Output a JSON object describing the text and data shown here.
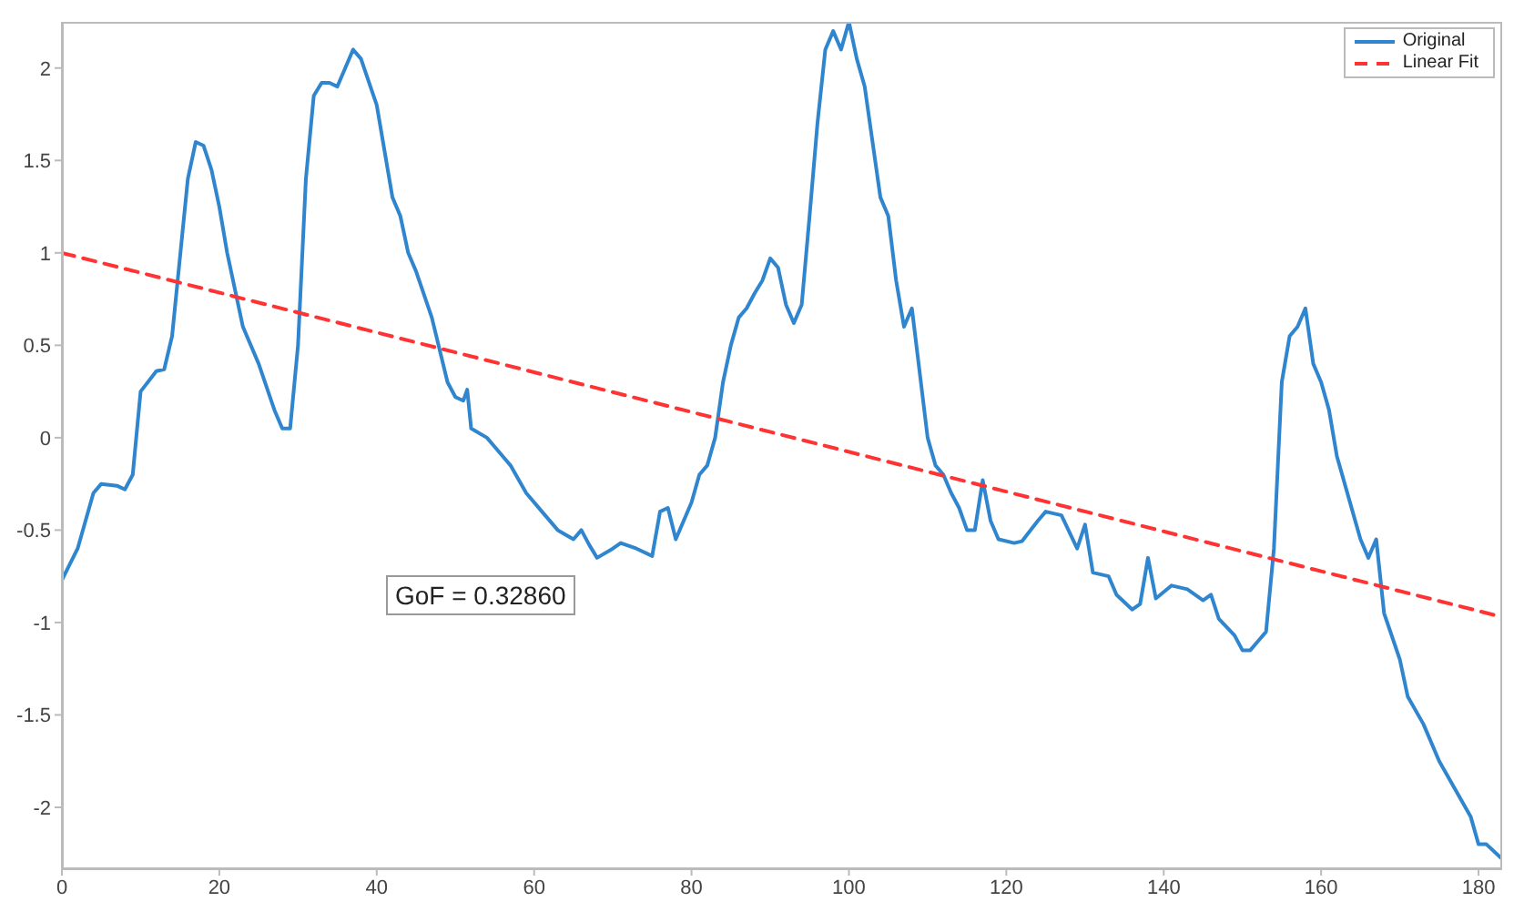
{
  "chart_data": {
    "type": "line",
    "xlim": [
      0,
      183
    ],
    "ylim": [
      -2.33,
      2.25
    ],
    "xticks": [
      0,
      20,
      40,
      60,
      80,
      100,
      120,
      140,
      160,
      180
    ],
    "yticks": [
      -2,
      -1.5,
      -1,
      -0.5,
      0,
      0.5,
      1,
      1.5,
      2
    ],
    "grid": false,
    "legend": "top right",
    "marker": "none",
    "annotations": [
      "GoF = 0.32860"
    ],
    "series": [
      {
        "name": "Original",
        "color": "#2f86cf",
        "line_style": "solid",
        "x": [
          0,
          2,
          4,
          5,
          7,
          8,
          9,
          10,
          12,
          13,
          14,
          16,
          17,
          18,
          19,
          20,
          21,
          23,
          25,
          27,
          28,
          29,
          30,
          31,
          32,
          33,
          34,
          35,
          36,
          37,
          38,
          40,
          42,
          43,
          44,
          45,
          47,
          49,
          50,
          51,
          51.5,
          52,
          54,
          55,
          57,
          59,
          61,
          63,
          65,
          66,
          67,
          68,
          70,
          71,
          73,
          75,
          76,
          77,
          78,
          79,
          80,
          81,
          82,
          83,
          84,
          85,
          86,
          87,
          88,
          89,
          90,
          91,
          92,
          93,
          94,
          95,
          96,
          97,
          98,
          99,
          100,
          101,
          102,
          103,
          104,
          105,
          106,
          107,
          108,
          109,
          110,
          111,
          112,
          113,
          114,
          115,
          116,
          117,
          118,
          119,
          121,
          122,
          124,
          125,
          127,
          129,
          130,
          131,
          133,
          134,
          136,
          137,
          138,
          139,
          141,
          143,
          145,
          146,
          147,
          149,
          150,
          151,
          152,
          153,
          154,
          155,
          156,
          157,
          158,
          159,
          160,
          161,
          162,
          164,
          165,
          166,
          167,
          168,
          170,
          171,
          173,
          175,
          177,
          179,
          180,
          181,
          183
        ],
        "values": [
          -0.77,
          -0.6,
          -0.3,
          -0.25,
          -0.26,
          -0.28,
          -0.2,
          0.25,
          0.36,
          0.37,
          0.55,
          1.4,
          1.6,
          1.58,
          1.45,
          1.25,
          1.0,
          0.6,
          0.4,
          0.15,
          0.05,
          0.05,
          0.5,
          1.4,
          1.85,
          1.92,
          1.92,
          1.9,
          2.0,
          2.1,
          2.05,
          1.8,
          1.3,
          1.2,
          1.0,
          0.9,
          0.65,
          0.3,
          0.22,
          0.2,
          0.26,
          0.05,
          0.0,
          -0.05,
          -0.15,
          -0.3,
          -0.4,
          -0.5,
          -0.55,
          -0.5,
          -0.58,
          -0.65,
          -0.6,
          -0.57,
          -0.6,
          -0.64,
          -0.4,
          -0.38,
          -0.55,
          -0.45,
          -0.35,
          -0.2,
          -0.15,
          0.0,
          0.3,
          0.5,
          0.65,
          0.7,
          0.78,
          0.85,
          0.97,
          0.92,
          0.72,
          0.62,
          0.72,
          1.2,
          1.7,
          2.1,
          2.2,
          2.1,
          2.25,
          2.05,
          1.9,
          1.6,
          1.3,
          1.2,
          0.85,
          0.6,
          0.7,
          0.35,
          0.0,
          -0.15,
          -0.2,
          -0.3,
          -0.38,
          -0.5,
          -0.5,
          -0.23,
          -0.45,
          -0.55,
          -0.57,
          -0.56,
          -0.45,
          -0.4,
          -0.42,
          -0.6,
          -0.47,
          -0.73,
          -0.75,
          -0.85,
          -0.93,
          -0.9,
          -0.65,
          -0.87,
          -0.8,
          -0.82,
          -0.88,
          -0.85,
          -0.98,
          -1.07,
          -1.15,
          -1.15,
          -1.1,
          -1.05,
          -0.6,
          0.3,
          0.55,
          0.6,
          0.7,
          0.4,
          0.3,
          0.15,
          -0.1,
          -0.4,
          -0.55,
          -0.65,
          -0.55,
          -0.95,
          -1.2,
          -1.4,
          -1.55,
          -1.75,
          -1.9,
          -2.05,
          -2.2,
          -2.2,
          -2.28
        ]
      },
      {
        "name": "Linear Fit",
        "color": "#ff3333",
        "line_style": "dashed",
        "x": [
          0,
          183
        ],
        "values": [
          1,
          -0.97
        ]
      }
    ]
  }
}
